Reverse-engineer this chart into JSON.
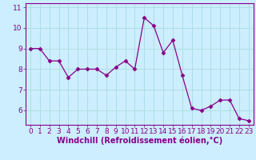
{
  "x": [
    0,
    1,
    2,
    3,
    4,
    5,
    6,
    7,
    8,
    9,
    10,
    11,
    12,
    13,
    14,
    15,
    16,
    17,
    18,
    19,
    20,
    21,
    22,
    23
  ],
  "y": [
    9.0,
    9.0,
    8.4,
    8.4,
    7.6,
    8.0,
    8.0,
    8.0,
    7.7,
    8.1,
    8.4,
    8.0,
    10.5,
    10.1,
    8.8,
    9.4,
    7.7,
    6.1,
    6.0,
    6.2,
    6.5,
    6.5,
    5.6,
    5.5
  ],
  "line_color": "#880088",
  "marker": "D",
  "marker_size": 2.5,
  "bg_color": "#cceeff",
  "grid_color": "#aadddd",
  "xlabel": "Windchill (Refroidissement éolien,°C)",
  "xlim": [
    -0.5,
    23.5
  ],
  "ylim": [
    5.3,
    11.2
  ],
  "yticks": [
    6,
    7,
    8,
    9,
    10,
    11
  ],
  "xticks": [
    0,
    1,
    2,
    3,
    4,
    5,
    6,
    7,
    8,
    9,
    10,
    11,
    12,
    13,
    14,
    15,
    16,
    17,
    18,
    19,
    20,
    21,
    22,
    23
  ],
  "xlabel_fontsize": 7,
  "tick_fontsize": 6.5,
  "label_color": "#880088",
  "spine_color": "#880088"
}
